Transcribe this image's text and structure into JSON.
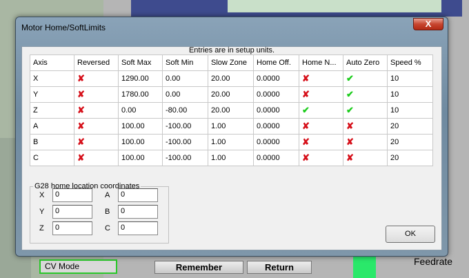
{
  "background": {
    "remember": "Remember",
    "return": "Return",
    "cv_mode": "CV Mode",
    "feedrate": "Feedrate"
  },
  "dialog": {
    "title": "Motor Home/SoftLimits",
    "close": "X",
    "note": "Entries are in setup units.",
    "columns": [
      "Axis",
      "Reversed",
      "Soft Max",
      "Soft Min",
      "Slow Zone",
      "Home Off.",
      "Home N...",
      "Auto Zero",
      "Speed %"
    ],
    "rows": [
      {
        "axis": "X",
        "reversed": false,
        "soft_max": "1290.00",
        "soft_min": "0.00",
        "slow_zone": "20.00",
        "home_off": "0.0000",
        "home_neg": false,
        "auto_zero": true,
        "speed": "10"
      },
      {
        "axis": "Y",
        "reversed": false,
        "soft_max": "1780.00",
        "soft_min": "0.00",
        "slow_zone": "20.00",
        "home_off": "0.0000",
        "home_neg": false,
        "auto_zero": true,
        "speed": "10"
      },
      {
        "axis": "Z",
        "reversed": false,
        "soft_max": "0.00",
        "soft_min": "-80.00",
        "slow_zone": "20.00",
        "home_off": "0.0000",
        "home_neg": true,
        "auto_zero": true,
        "speed": "10"
      },
      {
        "axis": "A",
        "reversed": false,
        "soft_max": "100.00",
        "soft_min": "-100.00",
        "slow_zone": "1.00",
        "home_off": "0.0000",
        "home_neg": false,
        "auto_zero": false,
        "speed": "20"
      },
      {
        "axis": "B",
        "reversed": false,
        "soft_max": "100.00",
        "soft_min": "-100.00",
        "slow_zone": "1.00",
        "home_off": "0.0000",
        "home_neg": false,
        "auto_zero": false,
        "speed": "20"
      },
      {
        "axis": "C",
        "reversed": false,
        "soft_max": "100.00",
        "soft_min": "-100.00",
        "slow_zone": "1.00",
        "home_off": "0.0000",
        "home_neg": false,
        "auto_zero": false,
        "speed": "20"
      }
    ],
    "g28": {
      "legend": "G28 home location coordinates",
      "fields": [
        {
          "label": "X",
          "value": "0"
        },
        {
          "label": "Y",
          "value": "0"
        },
        {
          "label": "Z",
          "value": "0"
        },
        {
          "label": "A",
          "value": "0"
        },
        {
          "label": "B",
          "value": "0"
        },
        {
          "label": "C",
          "value": "0"
        }
      ]
    },
    "ok": "OK"
  }
}
